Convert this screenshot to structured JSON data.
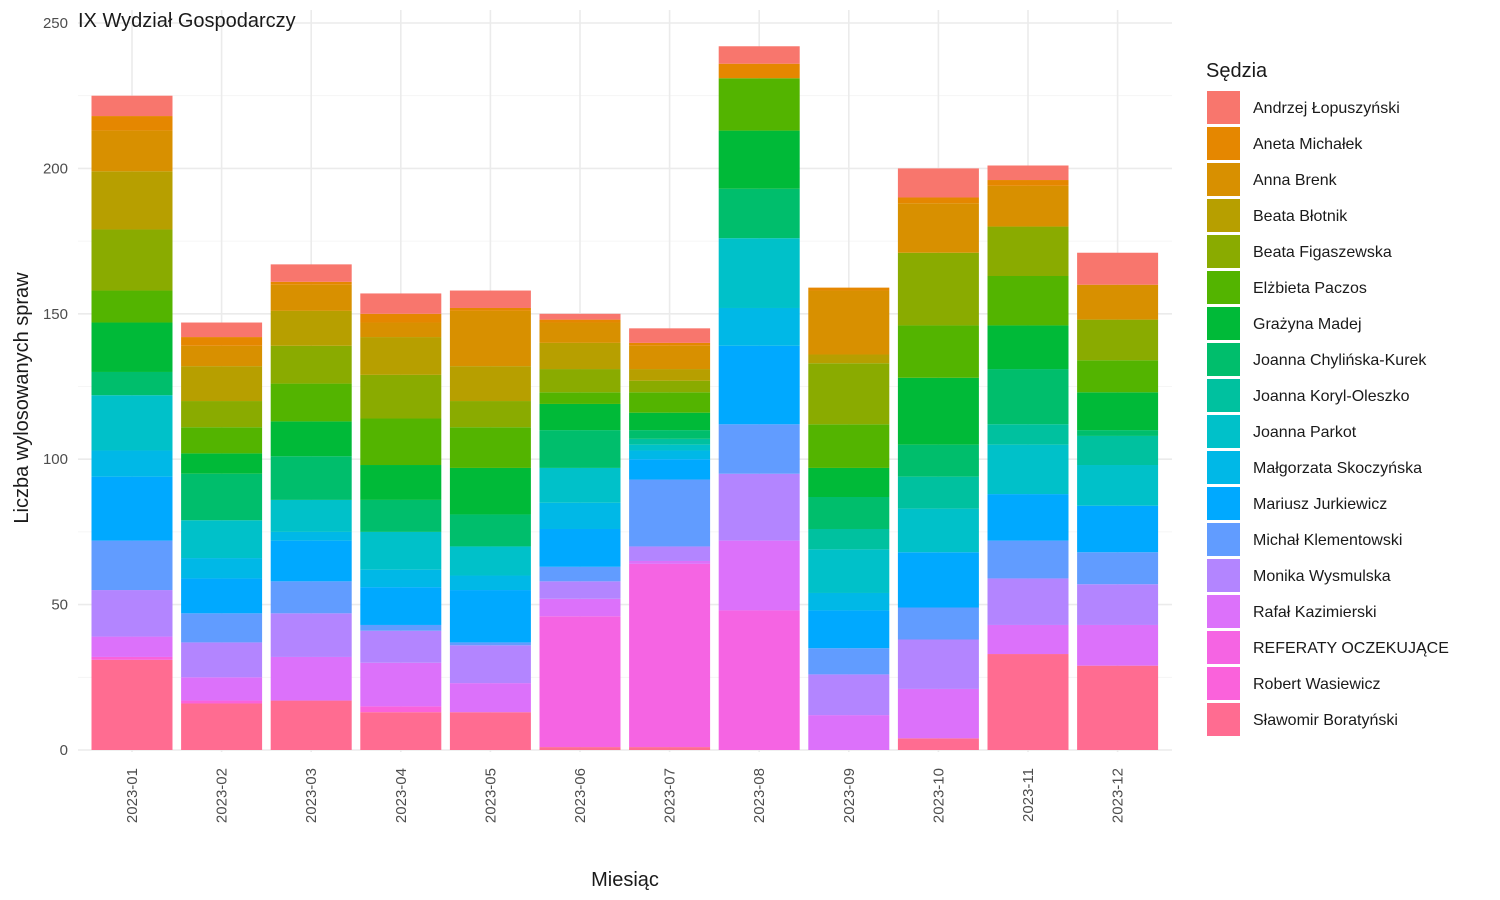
{
  "chart_data": {
    "type": "bar",
    "stacked": true,
    "title": "IX Wydział Gospodarczy",
    "xlabel": "Miesiąc",
    "ylabel": "Liczba wylosowanych spraw",
    "ylim": [
      0,
      250
    ],
    "yticks": [
      0,
      50,
      100,
      150,
      200,
      250
    ],
    "grid": true,
    "legend_title": "Sędzia",
    "legend_position": "right",
    "categories": [
      "2023-01",
      "2023-02",
      "2023-03",
      "2023-04",
      "2023-05",
      "2023-06",
      "2023-07",
      "2023-08",
      "2023-09",
      "2023-10",
      "2023-11",
      "2023-12"
    ],
    "series": [
      {
        "name": "Sławomir Boratyński",
        "color": "#FF6C91",
        "values": [
          31,
          16,
          17,
          13,
          13,
          1,
          1,
          0,
          0,
          4,
          33,
          29
        ]
      },
      {
        "name": "Robert Wasiewicz",
        "color": "#FA62DB",
        "values": [
          1,
          1,
          0,
          2,
          0,
          0,
          0,
          0,
          0,
          0,
          0,
          0
        ]
      },
      {
        "name": "REFERATY OCZEKUJĄCE",
        "color": "#F564E3",
        "values": [
          0,
          0,
          0,
          0,
          0,
          45,
          63,
          48,
          0,
          0,
          0,
          0
        ]
      },
      {
        "name": "Rafał Kazimierski",
        "color": "#DC71FA",
        "values": [
          7,
          8,
          15,
          15,
          10,
          6,
          1,
          24,
          12,
          17,
          10,
          14
        ]
      },
      {
        "name": "Monika Wysmulska",
        "color": "#B385FF",
        "values": [
          16,
          12,
          15,
          11,
          13,
          6,
          5,
          23,
          14,
          17,
          16,
          14
        ]
      },
      {
        "name": "Michał Klementowski",
        "color": "#619CFF",
        "values": [
          17,
          10,
          11,
          2,
          1,
          5,
          23,
          17,
          9,
          11,
          13,
          11
        ]
      },
      {
        "name": "Mariusz Jurkiewicz",
        "color": "#00A9FF",
        "values": [
          22,
          12,
          14,
          13,
          18,
          13,
          7,
          27,
          13,
          19,
          16,
          16
        ]
      },
      {
        "name": "Małgorzata Skoczyńska",
        "color": "#00B8E7",
        "values": [
          9,
          7,
          3,
          6,
          5,
          9,
          3,
          13,
          6,
          0,
          0,
          0
        ]
      },
      {
        "name": "Joanna Parkot",
        "color": "#00C1C9",
        "values": [
          19,
          13,
          11,
          13,
          10,
          12,
          2,
          24,
          15,
          15,
          17,
          14
        ]
      },
      {
        "name": "Joanna Koryl-Oleszko",
        "color": "#00C19F",
        "values": [
          0,
          0,
          0,
          0,
          0,
          0,
          2,
          0,
          7,
          11,
          7,
          10
        ]
      },
      {
        "name": "Joanna Chylińska-Kurek",
        "color": "#00BE6C",
        "values": [
          8,
          16,
          15,
          11,
          11,
          13,
          3,
          17,
          11,
          11,
          19,
          2
        ]
      },
      {
        "name": "Grażyna Madej",
        "color": "#00BA38",
        "values": [
          17,
          7,
          12,
          12,
          16,
          9,
          6,
          20,
          10,
          23,
          15,
          13
        ]
      },
      {
        "name": "Elżbieta Paczos",
        "color": "#53B400",
        "values": [
          11,
          9,
          13,
          16,
          14,
          4,
          7,
          18,
          15,
          18,
          17,
          11
        ]
      },
      {
        "name": "Beata Figaszewska",
        "color": "#8AAB00",
        "values": [
          21,
          9,
          13,
          15,
          9,
          8,
          4,
          0,
          21,
          25,
          17,
          14
        ]
      },
      {
        "name": "Beata Błotnik",
        "color": "#B79F00",
        "values": [
          20,
          12,
          12,
          13,
          12,
          9,
          4,
          0,
          3,
          0,
          0,
          0
        ]
      },
      {
        "name": "Anna Brenk",
        "color": "#D89000",
        "values": [
          14,
          7,
          9,
          5,
          19,
          7,
          8,
          0,
          22,
          17,
          14,
          12
        ]
      },
      {
        "name": "Aneta Michałek",
        "color": "#E58700",
        "values": [
          5,
          3,
          1,
          3,
          1,
          1,
          1,
          5,
          1,
          2,
          2,
          0
        ]
      },
      {
        "name": "Andrzej Łopuszyński",
        "color": "#F8766D",
        "values": [
          7,
          5,
          6,
          7,
          6,
          2,
          5,
          6,
          0,
          10,
          5,
          11
        ]
      }
    ]
  }
}
